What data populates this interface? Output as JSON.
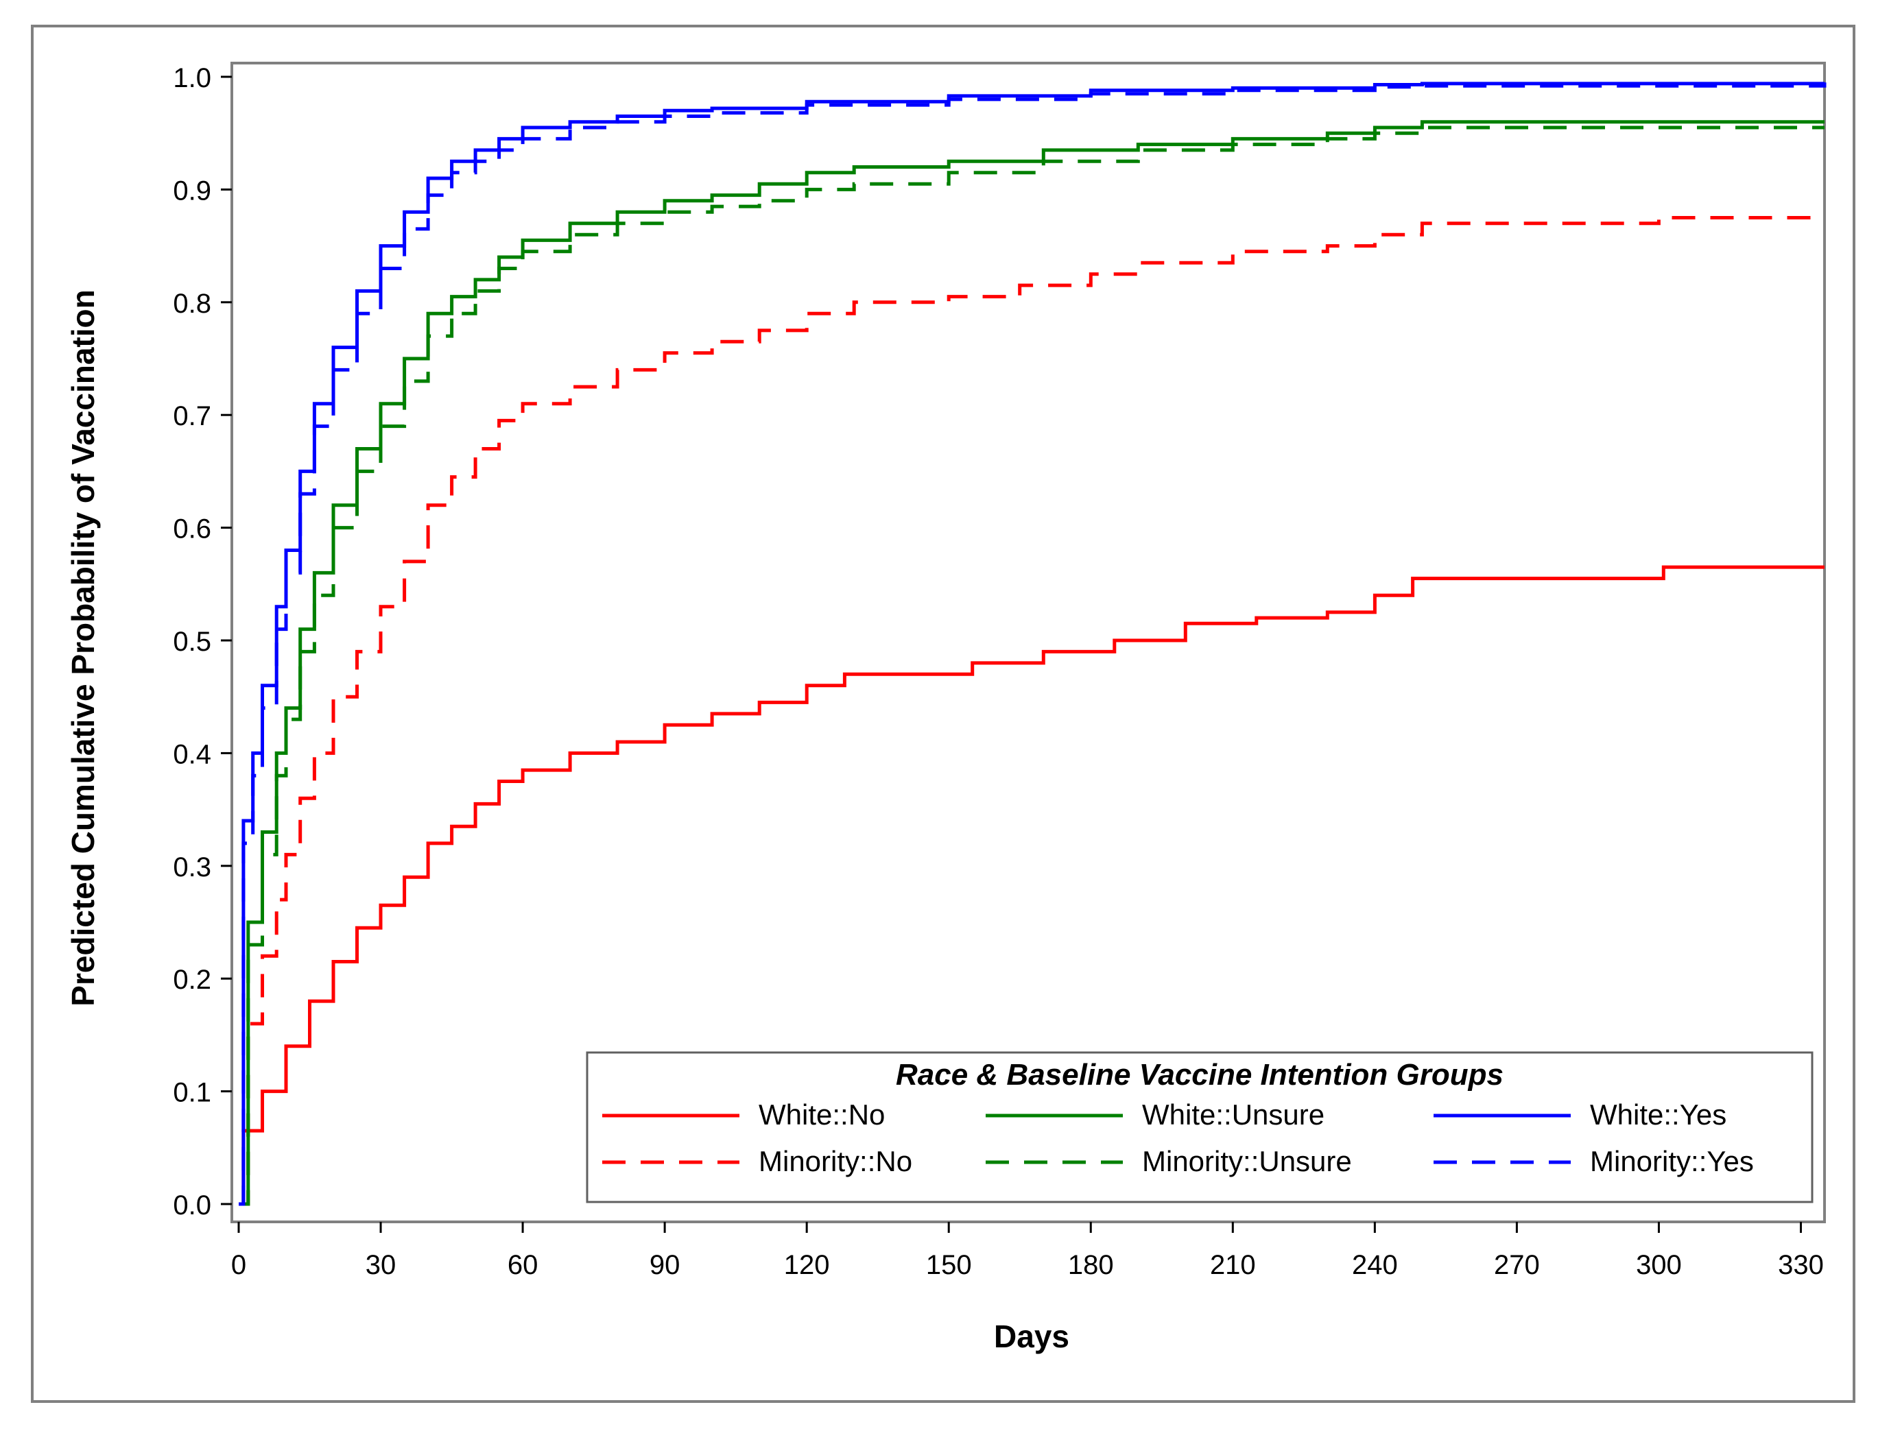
{
  "chart_data": {
    "type": "line",
    "step": true,
    "title": "",
    "xlabel": "Days",
    "ylabel": "Predicted Cumulative Probability of Vaccination",
    "xlim": [
      0,
      335
    ],
    "ylim": [
      0,
      1.0
    ],
    "x_ticks": [
      0,
      30,
      60,
      90,
      120,
      150,
      180,
      210,
      240,
      270,
      300,
      330
    ],
    "y_ticks": [
      0.0,
      0.1,
      0.2,
      0.3,
      0.4,
      0.5,
      0.6,
      0.7,
      0.8,
      0.9,
      1.0
    ],
    "y_tick_labels": [
      "0.0",
      "0.1",
      "0.2",
      "0.3",
      "0.4",
      "0.5",
      "0.6",
      "0.7",
      "0.8",
      "0.9",
      "1.0"
    ],
    "grid": false,
    "legend": {
      "title": "Race & Baseline Vaccine Intention Groups",
      "placement": "bottom-right",
      "columns": 3
    },
    "series": [
      {
        "name": "White::No",
        "color": "#ff0000",
        "dash": "solid",
        "x": [
          0,
          1,
          5,
          10,
          15,
          20,
          25,
          30,
          35,
          40,
          45,
          50,
          55,
          60,
          70,
          80,
          90,
          100,
          110,
          120,
          128,
          140,
          155,
          170,
          185,
          200,
          215,
          230,
          240,
          248,
          270,
          300,
          301,
          335
        ],
        "y": [
          0,
          0.065,
          0.1,
          0.14,
          0.18,
          0.215,
          0.245,
          0.265,
          0.29,
          0.32,
          0.335,
          0.355,
          0.375,
          0.385,
          0.4,
          0.41,
          0.425,
          0.435,
          0.445,
          0.46,
          0.47,
          0.47,
          0.48,
          0.49,
          0.5,
          0.515,
          0.52,
          0.525,
          0.54,
          0.555,
          0.555,
          0.555,
          0.565,
          0.565
        ]
      },
      {
        "name": "Minority::No",
        "color": "#ff0000",
        "dash": "dashed",
        "x": [
          0,
          2,
          5,
          8,
          10,
          13,
          16,
          20,
          25,
          30,
          35,
          40,
          45,
          50,
          55,
          60,
          70,
          80,
          90,
          100,
          110,
          120,
          130,
          150,
          165,
          180,
          190,
          210,
          230,
          240,
          250,
          300,
          335
        ],
        "y": [
          0,
          0.16,
          0.22,
          0.27,
          0.31,
          0.36,
          0.4,
          0.45,
          0.49,
          0.53,
          0.57,
          0.62,
          0.645,
          0.67,
          0.695,
          0.71,
          0.725,
          0.74,
          0.755,
          0.765,
          0.775,
          0.79,
          0.8,
          0.805,
          0.815,
          0.825,
          0.835,
          0.845,
          0.85,
          0.86,
          0.87,
          0.875,
          0.875
        ]
      },
      {
        "name": "White::Unsure",
        "color": "#008000",
        "dash": "solid",
        "x": [
          0,
          2,
          5,
          8,
          10,
          13,
          16,
          20,
          25,
          30,
          35,
          40,
          45,
          50,
          55,
          60,
          70,
          80,
          90,
          100,
          110,
          120,
          130,
          150,
          170,
          190,
          210,
          230,
          240,
          250,
          300,
          335
        ],
        "y": [
          0,
          0.25,
          0.33,
          0.4,
          0.44,
          0.51,
          0.56,
          0.62,
          0.67,
          0.71,
          0.75,
          0.79,
          0.805,
          0.82,
          0.84,
          0.855,
          0.87,
          0.88,
          0.89,
          0.895,
          0.905,
          0.915,
          0.92,
          0.925,
          0.935,
          0.94,
          0.945,
          0.95,
          0.955,
          0.96,
          0.96,
          0.96
        ]
      },
      {
        "name": "Minority::Unsure",
        "color": "#008000",
        "dash": "dashed",
        "x": [
          0,
          2,
          5,
          8,
          10,
          13,
          16,
          20,
          25,
          30,
          35,
          40,
          45,
          50,
          55,
          60,
          70,
          80,
          90,
          100,
          110,
          120,
          130,
          150,
          170,
          190,
          210,
          230,
          240,
          250,
          300,
          335
        ],
        "y": [
          0,
          0.23,
          0.31,
          0.38,
          0.43,
          0.49,
          0.54,
          0.6,
          0.65,
          0.69,
          0.73,
          0.77,
          0.79,
          0.81,
          0.83,
          0.845,
          0.86,
          0.87,
          0.88,
          0.885,
          0.89,
          0.9,
          0.905,
          0.915,
          0.925,
          0.935,
          0.94,
          0.945,
          0.95,
          0.955,
          0.955,
          0.955
        ]
      },
      {
        "name": "White::Yes",
        "color": "#0000ff",
        "dash": "solid",
        "x": [
          0,
          1,
          3,
          5,
          8,
          10,
          13,
          16,
          20,
          25,
          30,
          35,
          40,
          45,
          50,
          55,
          60,
          70,
          80,
          90,
          100,
          120,
          150,
          180,
          210,
          240,
          250,
          335
        ],
        "y": [
          0,
          0.34,
          0.4,
          0.46,
          0.53,
          0.58,
          0.65,
          0.71,
          0.76,
          0.81,
          0.85,
          0.88,
          0.91,
          0.925,
          0.935,
          0.945,
          0.955,
          0.96,
          0.965,
          0.97,
          0.972,
          0.978,
          0.983,
          0.988,
          0.99,
          0.993,
          0.994,
          0.995
        ]
      },
      {
        "name": "Minority::Yes",
        "color": "#0000ff",
        "dash": "dashed",
        "x": [
          0,
          1,
          3,
          5,
          8,
          10,
          13,
          16,
          20,
          25,
          30,
          35,
          40,
          45,
          50,
          55,
          60,
          70,
          80,
          90,
          100,
          120,
          150,
          180,
          210,
          240,
          250,
          335
        ],
        "y": [
          0,
          0.32,
          0.38,
          0.44,
          0.51,
          0.56,
          0.63,
          0.69,
          0.74,
          0.79,
          0.83,
          0.865,
          0.895,
          0.915,
          0.925,
          0.935,
          0.945,
          0.955,
          0.96,
          0.965,
          0.968,
          0.975,
          0.98,
          0.985,
          0.988,
          0.991,
          0.992,
          0.993
        ]
      }
    ]
  }
}
